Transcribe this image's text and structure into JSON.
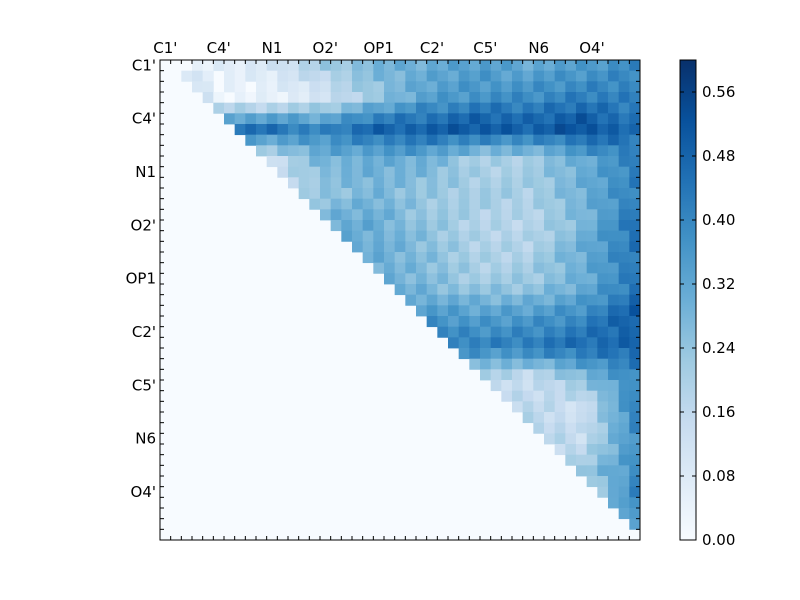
{
  "chart_data": {
    "type": "heatmap",
    "title": "",
    "xlabel": "",
    "ylabel": "",
    "n": 45,
    "labels_x": [
      "C1'",
      "C4'",
      "N1",
      "O2'",
      "OP1",
      "C2'",
      "C5'",
      "N6",
      "O4'"
    ],
    "labels_y": [
      "C1'",
      "C4'",
      "N1",
      "O2'",
      "OP1",
      "C2'",
      "C5'",
      "N6",
      "O4'"
    ],
    "label_indices": [
      0,
      5,
      10,
      15,
      20,
      25,
      30,
      35,
      40
    ],
    "colorbar": {
      "min": 0.0,
      "max": 0.6,
      "ticks": [
        0.0,
        0.08,
        0.16,
        0.24,
        0.32,
        0.4,
        0.48,
        0.56
      ],
      "tick_labels": [
        "0.00",
        "0.08",
        "0.16",
        "0.24",
        "0.32",
        "0.40",
        "0.48",
        "0.56"
      ],
      "colors": [
        "#f7fbff",
        "#deebf7",
        "#c6dbef",
        "#9ecae1",
        "#6baed6",
        "#4292c6",
        "#2171b5",
        "#08519c",
        "#08306b"
      ]
    },
    "row_profiles": [
      [
        0.0,
        0.05,
        0.1,
        0.22,
        0.28,
        0.3,
        0.35,
        0.32,
        0.34,
        0.4
      ],
      [
        0.4,
        0.02,
        0.04,
        0.1,
        0.22,
        0.34,
        0.38,
        0.38,
        0.42,
        0.42
      ],
      [
        0.3,
        0.48,
        0.46,
        0.4,
        0.5,
        0.5,
        0.52,
        0.5,
        0.55,
        0.45
      ],
      [
        0.05,
        0.08,
        0.12,
        0.3,
        0.3,
        0.3,
        0.2,
        0.22,
        0.3,
        0.42
      ],
      [
        0.03,
        0.16,
        0.16,
        0.22,
        0.28,
        0.24,
        0.22,
        0.2,
        0.3,
        0.42
      ],
      [
        0.0,
        0.05,
        0.08,
        0.3,
        0.32,
        0.24,
        0.18,
        0.18,
        0.28,
        0.44
      ],
      [
        0.0,
        0.02,
        0.05,
        0.32,
        0.3,
        0.26,
        0.2,
        0.2,
        0.3,
        0.44
      ],
      [
        0.0,
        0.0,
        0.02,
        0.18,
        0.3,
        0.28,
        0.22,
        0.22,
        0.3,
        0.44
      ],
      [
        0.0,
        0.0,
        0.0,
        0.2,
        0.38,
        0.36,
        0.34,
        0.36,
        0.4,
        0.5
      ],
      [
        0.0,
        0.0,
        0.0,
        0.0,
        0.4,
        0.44,
        0.42,
        0.44,
        0.46,
        0.48
      ],
      [
        0.0,
        0.0,
        0.0,
        0.0,
        0.0,
        0.3,
        0.18,
        0.12,
        0.26,
        0.4
      ],
      [
        0.0,
        0.0,
        0.0,
        0.0,
        0.0,
        0.03,
        0.16,
        0.18,
        0.12,
        0.4
      ],
      [
        0.0,
        0.0,
        0.0,
        0.0,
        0.0,
        0.0,
        0.03,
        0.2,
        0.14,
        0.38
      ],
      [
        0.0,
        0.0,
        0.0,
        0.0,
        0.0,
        0.0,
        0.0,
        0.04,
        0.24,
        0.38
      ],
      [
        0.0,
        0.0,
        0.0,
        0.0,
        0.0,
        0.0,
        0.0,
        0.0,
        0.1,
        0.4
      ],
      [
        0.0,
        0.0,
        0.0,
        0.0,
        0.0,
        0.0,
        0.0,
        0.0,
        0.0,
        0.3
      ]
    ]
  }
}
